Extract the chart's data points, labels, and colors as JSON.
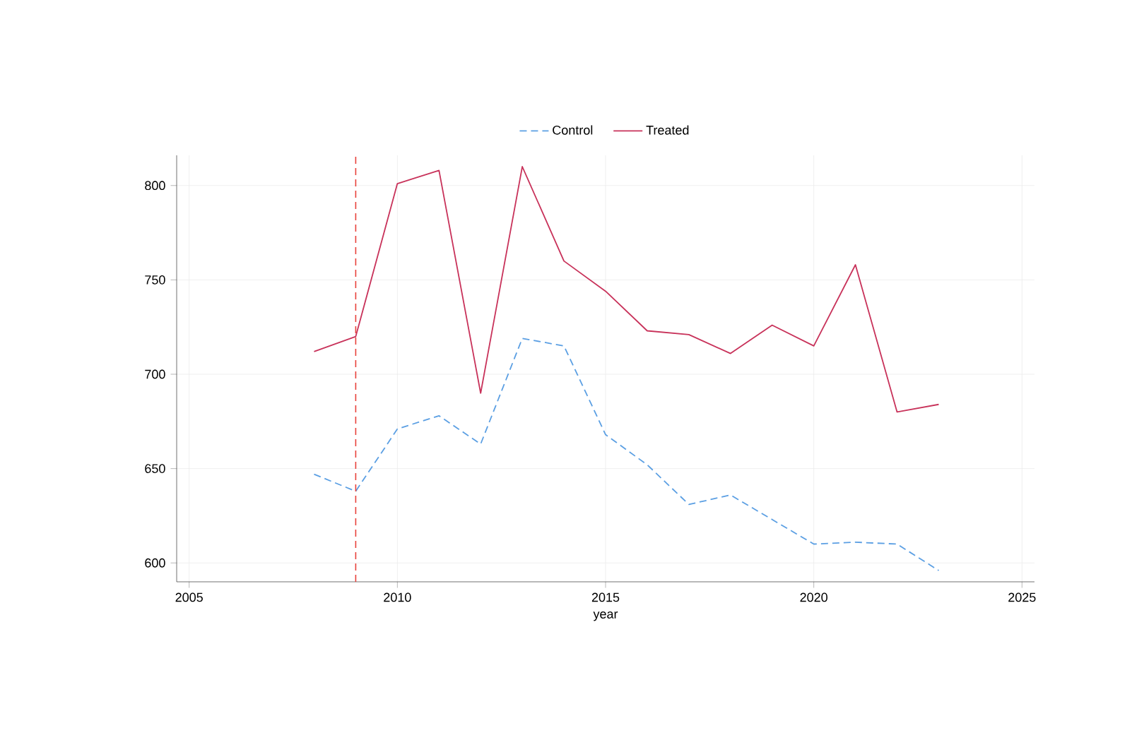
{
  "chart_data": {
    "type": "line",
    "xlabel": "year",
    "x": [
      2008,
      2009,
      2010,
      2011,
      2012,
      2013,
      2014,
      2015,
      2016,
      2017,
      2018,
      2019,
      2020,
      2021,
      2022,
      2023
    ],
    "series": [
      {
        "name": "Control",
        "color": "#5b9fe3",
        "line_style": "dashed",
        "values": [
          647,
          638,
          671,
          678,
          663,
          719,
          715,
          668,
          652,
          631,
          636,
          623,
          610,
          611,
          610,
          596
        ]
      },
      {
        "name": "Treated",
        "color": "#c8325a",
        "line_style": "solid",
        "values": [
          712,
          720,
          801,
          808,
          690,
          810,
          760,
          744,
          723,
          721,
          711,
          726,
          715,
          758,
          680,
          684
        ]
      }
    ],
    "xlim": [
      2004.7,
      2025.3
    ],
    "ylim": [
      590,
      816
    ],
    "xticks": [
      2005,
      2010,
      2015,
      2020,
      2025
    ],
    "yticks": [
      600,
      650,
      700,
      750,
      800
    ],
    "ref_lines": [
      {
        "axis": "x",
        "value": 2009,
        "color": "#e8403a",
        "line_style": "dashed"
      }
    ],
    "grid": true,
    "legend": "top",
    "marker": "none"
  }
}
